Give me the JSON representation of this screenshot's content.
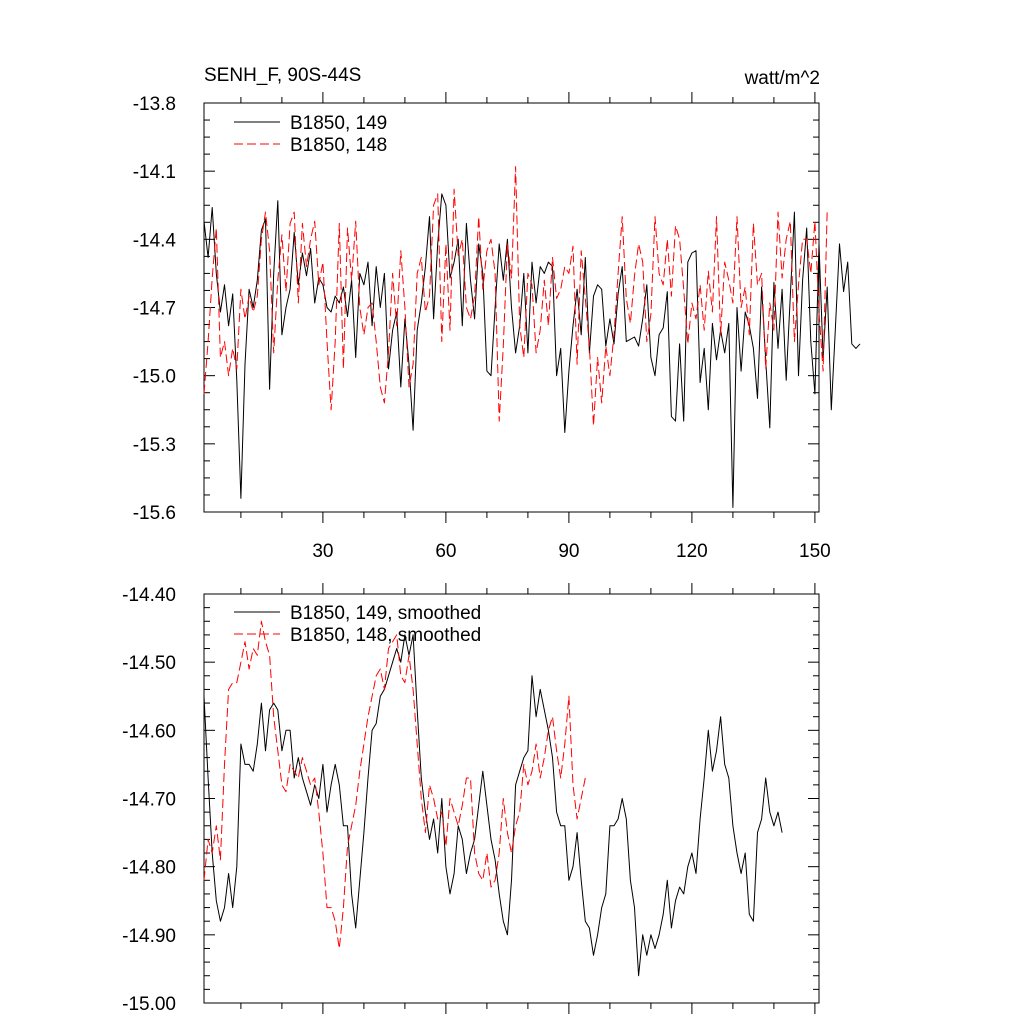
{
  "chart_data": [
    {
      "type": "line",
      "title": "SENH_F, 90S-44S",
      "units": "watt/m^2",
      "xlim": [
        1,
        151
      ],
      "ylim": [
        -15.6,
        -13.8
      ],
      "yticks": [
        "-13.8",
        "-14.1",
        "-14.4",
        "-14.7",
        "-15.0",
        "-15.3",
        "-15.6"
      ],
      "xticks": [
        "30",
        "60",
        "90",
        "120",
        "150"
      ],
      "legend": "top-left",
      "series": [
        {
          "name": "B1850, 149",
          "color": "#000000",
          "dash": "solid",
          "x_start": 1,
          "values": [
            -14.32,
            -14.48,
            -14.26,
            -14.55,
            -14.72,
            -14.6,
            -14.78,
            -14.64,
            -15.02,
            -15.54,
            -14.95,
            -14.62,
            -14.7,
            -14.58,
            -14.36,
            -14.31,
            -15.06,
            -14.55,
            -14.23,
            -14.82,
            -14.7,
            -14.62,
            -14.37,
            -14.6,
            -14.46,
            -14.56,
            -14.44,
            -14.68,
            -14.57,
            -14.6,
            -14.7,
            -14.72,
            -14.65,
            -14.68,
            -14.61,
            -14.74,
            -14.58,
            -14.92,
            -14.55,
            -14.6,
            -14.5,
            -14.78,
            -14.52,
            -14.7,
            -14.55,
            -14.97,
            -14.8,
            -14.72,
            -15.05,
            -14.75,
            -14.95,
            -15.24,
            -14.8,
            -14.68,
            -14.52,
            -14.3,
            -14.75,
            -14.42,
            -14.2,
            -14.25,
            -14.57,
            -14.5,
            -14.4,
            -14.78,
            -14.33,
            -14.58,
            -14.75,
            -14.42,
            -14.55,
            -14.98,
            -15.0,
            -14.7,
            -14.42,
            -14.58,
            -14.4,
            -14.7,
            -14.9,
            -14.78,
            -14.55,
            -14.9,
            -14.5,
            -14.68,
            -14.52,
            -14.55,
            -14.5,
            -14.52,
            -15.0,
            -14.88,
            -15.25,
            -14.98,
            -14.78,
            -14.62,
            -14.82,
            -14.48,
            -14.9,
            -14.65,
            -14.6,
            -14.62,
            -14.87,
            -14.75,
            -14.86,
            -14.64,
            -14.52,
            -14.85,
            -14.84,
            -14.83,
            -14.87,
            -14.75,
            -14.6,
            -14.92,
            -15.0,
            -14.82,
            -14.79,
            -14.63,
            -15.18,
            -15.2,
            -14.86,
            -15.2,
            -14.5,
            -14.46,
            -14.45,
            -15.03,
            -14.88,
            -15.15,
            -14.77,
            -14.93,
            -14.8,
            -14.9,
            -14.77,
            -15.58,
            -14.7,
            -14.98,
            -14.72,
            -14.78,
            -14.88,
            -15.1,
            -14.61,
            -14.93,
            -15.23,
            -14.59,
            -14.88,
            -14.62,
            -15.02,
            -14.65,
            -14.28,
            -15.0,
            -14.58,
            -14.35,
            -14.85,
            -15.08,
            -14.42,
            -14.92,
            -14.61,
            -15.15,
            -14.79,
            -14.42,
            -14.63,
            -14.5,
            -14.86,
            -14.88,
            -14.86
          ]
        },
        {
          "name": "B1850, 148",
          "color": "#ff0000",
          "dash": "dashed",
          "x_start": 1,
          "values": [
            -15.08,
            -14.85,
            -14.57,
            -14.35,
            -14.92,
            -14.85,
            -15.0,
            -14.88,
            -14.97,
            -14.62,
            -14.75,
            -14.65,
            -14.72,
            -14.65,
            -14.4,
            -14.28,
            -14.45,
            -14.9,
            -14.58,
            -14.38,
            -14.63,
            -14.33,
            -14.28,
            -14.68,
            -14.33,
            -14.52,
            -14.4,
            -14.32,
            -14.6,
            -14.5,
            -14.85,
            -15.15,
            -14.85,
            -14.33,
            -14.97,
            -14.35,
            -14.58,
            -14.32,
            -14.7,
            -14.82,
            -14.7,
            -14.68,
            -14.85,
            -15.05,
            -15.12,
            -14.9,
            -14.55,
            -14.78,
            -14.45,
            -14.7,
            -15.05,
            -14.95,
            -14.55,
            -14.48,
            -14.72,
            -14.65,
            -14.25,
            -14.2,
            -14.85,
            -14.42,
            -14.8,
            -14.18,
            -14.47,
            -14.4,
            -14.7,
            -14.75,
            -14.65,
            -14.3,
            -14.62,
            -14.45,
            -14.4,
            -14.55,
            -15.2,
            -14.87,
            -14.42,
            -14.57,
            -14.08,
            -14.78,
            -14.92,
            -14.55,
            -14.6,
            -14.9,
            -14.8,
            -14.58,
            -14.78,
            -14.48,
            -14.66,
            -14.62,
            -14.52,
            -14.55,
            -14.43,
            -14.95,
            -14.45,
            -14.66,
            -14.87,
            -15.22,
            -14.92,
            -15.12,
            -14.87,
            -15.0,
            -14.82,
            -14.55,
            -14.3,
            -14.66,
            -14.77,
            -14.56,
            -14.42,
            -14.5,
            -14.85,
            -14.73,
            -14.3,
            -14.55,
            -14.6,
            -14.4,
            -14.65,
            -14.34,
            -14.4,
            -14.62,
            -14.86,
            -14.68,
            -14.75,
            -14.6,
            -14.8,
            -14.54,
            -14.72,
            -14.3,
            -14.82,
            -14.5,
            -14.58,
            -14.68,
            -14.3,
            -14.7,
            -14.61,
            -14.82,
            -14.33,
            -14.6,
            -14.55,
            -14.97,
            -14.68,
            -14.8,
            -14.28,
            -14.57,
            -14.4,
            -14.32,
            -14.85,
            -14.6,
            -14.4,
            -14.4,
            -14.55,
            -14.32,
            -14.72,
            -14.98,
            -14.27
          ]
        }
      ]
    },
    {
      "type": "line",
      "title": "",
      "xlim": [
        1,
        151
      ],
      "ylim": [
        -15.0,
        -14.4
      ],
      "yticks": [
        "-14.40",
        "-14.50",
        "-14.60",
        "-14.70",
        "-14.80",
        "-14.90",
        "-15.00"
      ],
      "xticks": [],
      "legend": "top-left",
      "series": [
        {
          "name": "B1850, 149, smoothed",
          "color": "#000000",
          "dash": "solid",
          "x_start": 1,
          "values": [
            -14.55,
            -14.67,
            -14.78,
            -14.85,
            -14.88,
            -14.86,
            -14.81,
            -14.86,
            -14.8,
            -14.62,
            -14.65,
            -14.65,
            -14.66,
            -14.62,
            -14.56,
            -14.63,
            -14.57,
            -14.56,
            -14.57,
            -14.63,
            -14.6,
            -14.6,
            -14.67,
            -14.64,
            -14.67,
            -14.69,
            -14.71,
            -14.68,
            -14.7,
            -14.65,
            -14.72,
            -14.68,
            -14.65,
            -14.68,
            -14.74,
            -14.74,
            -14.84,
            -14.89,
            -14.82,
            -14.75,
            -14.67,
            -14.6,
            -14.59,
            -14.55,
            -14.54,
            -14.52,
            -14.5,
            -14.48,
            -14.5,
            -14.46,
            -14.49,
            -14.46,
            -14.57,
            -14.67,
            -14.72,
            -14.76,
            -14.73,
            -14.78,
            -14.7,
            -14.8,
            -14.84,
            -14.81,
            -14.74,
            -14.76,
            -14.81,
            -14.78,
            -14.76,
            -14.71,
            -14.66,
            -14.71,
            -14.76,
            -14.79,
            -14.84,
            -14.88,
            -14.9,
            -14.82,
            -14.68,
            -14.66,
            -14.64,
            -14.63,
            -14.52,
            -14.58,
            -14.54,
            -14.57,
            -14.6,
            -14.64,
            -14.72,
            -14.74,
            -14.74,
            -14.82,
            -14.8,
            -14.75,
            -14.82,
            -14.88,
            -14.89,
            -14.93,
            -14.9,
            -14.86,
            -14.84,
            -14.74,
            -14.74,
            -14.73,
            -14.7,
            -14.73,
            -14.82,
            -14.86,
            -14.96,
            -14.9,
            -14.93,
            -14.9,
            -14.92,
            -14.9,
            -14.87,
            -14.82,
            -14.89,
            -14.85,
            -14.83,
            -14.84,
            -14.8,
            -14.78,
            -14.81,
            -14.73,
            -14.67,
            -14.6,
            -14.66,
            -14.63,
            -14.58,
            -14.65,
            -14.67,
            -14.74,
            -14.78,
            -14.81,
            -14.78,
            -14.87,
            -14.88,
            -14.75,
            -14.73,
            -14.67,
            -14.72,
            -14.74,
            -14.72,
            -14.75
          ]
        },
        {
          "name": "B1850, 148, smoothed",
          "color": "#ff0000",
          "dash": "dashed",
          "x_start": 1,
          "values": [
            -14.82,
            -14.76,
            -14.78,
            -14.74,
            -14.79,
            -14.65,
            -14.54,
            -14.53,
            -14.53,
            -14.5,
            -14.47,
            -14.51,
            -14.48,
            -14.49,
            -14.44,
            -14.47,
            -14.49,
            -14.58,
            -14.63,
            -14.68,
            -14.69,
            -14.65,
            -14.66,
            -14.67,
            -14.64,
            -14.66,
            -14.68,
            -14.67,
            -14.72,
            -14.78,
            -14.86,
            -14.86,
            -14.88,
            -14.92,
            -14.86,
            -14.77,
            -14.74,
            -14.71,
            -14.66,
            -14.62,
            -14.58,
            -14.55,
            -14.52,
            -14.51,
            -14.54,
            -14.48,
            -14.47,
            -14.46,
            -14.52,
            -14.53,
            -14.49,
            -14.54,
            -14.62,
            -14.7,
            -14.75,
            -14.68,
            -14.7,
            -14.73,
            -14.72,
            -14.77,
            -14.7,
            -14.72,
            -14.74,
            -14.71,
            -14.67,
            -14.67,
            -14.78,
            -14.81,
            -14.82,
            -14.78,
            -14.83,
            -14.82,
            -14.78,
            -14.7,
            -14.75,
            -14.78,
            -14.74,
            -14.72,
            -14.65,
            -14.68,
            -14.66,
            -14.62,
            -14.67,
            -14.64,
            -14.6,
            -14.58,
            -14.63,
            -14.67,
            -14.62,
            -14.55,
            -14.68,
            -14.73,
            -14.7,
            -14.67
          ]
        }
      ]
    }
  ]
}
